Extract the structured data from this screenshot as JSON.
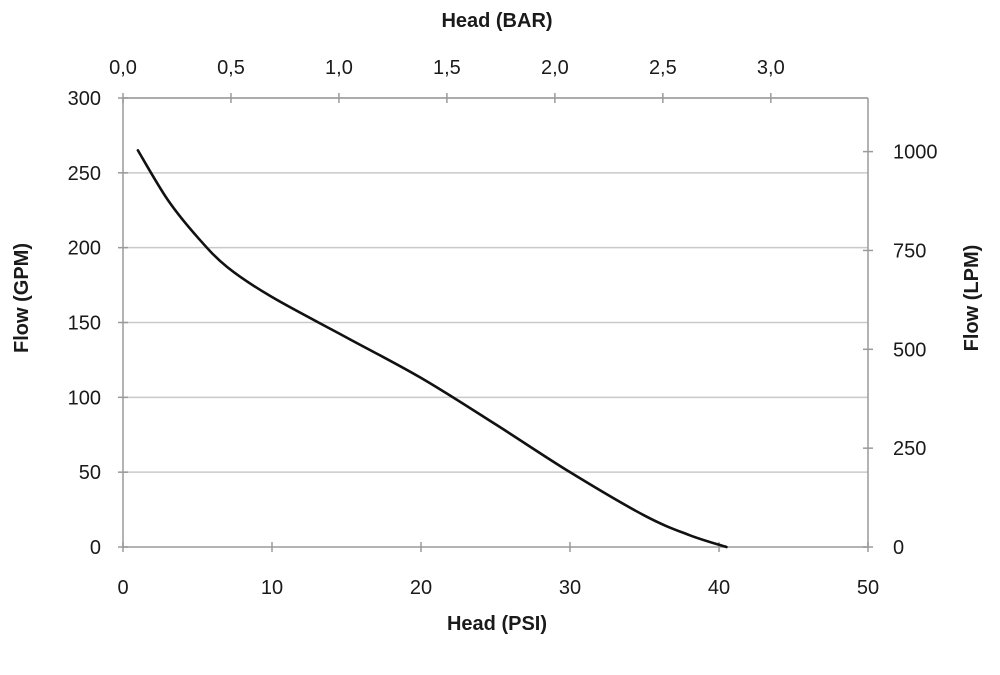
{
  "chart_data": {
    "type": "line",
    "xlabel": "Head (PSI)",
    "x2label": "Head (BAR)",
    "ylabel": "Flow (GPM)",
    "y2label": "Flow (LPM)",
    "xlim": [
      0,
      50
    ],
    "ylim": [
      0,
      300
    ],
    "x2lim": [
      0,
      3.45
    ],
    "y2lim": [
      0,
      1135.6
    ],
    "x_ticks": [
      "0",
      "10",
      "20",
      "30",
      "40",
      "50"
    ],
    "x_tick_values": [
      0,
      10,
      20,
      30,
      40,
      50
    ],
    "x2_ticks": [
      "0,0",
      "0,5",
      "1,0",
      "1,5",
      "2,0",
      "2,5",
      "3,0"
    ],
    "x2_tick_values": [
      0,
      0.5,
      1.0,
      1.5,
      2.0,
      2.5,
      3.0
    ],
    "y_ticks": [
      "0",
      "50",
      "100",
      "150",
      "200",
      "250",
      "300"
    ],
    "y_tick_values": [
      0,
      50,
      100,
      150,
      200,
      250,
      300
    ],
    "y2_ticks": [
      "0",
      "250",
      "500",
      "750",
      "1000"
    ],
    "y2_tick_values": [
      0,
      250,
      500,
      750,
      1000
    ],
    "grid": "horizontal",
    "line_color": "#111111",
    "series": [
      {
        "x": [
          1,
          3,
          5,
          7,
          10,
          15,
          20,
          25,
          30,
          35,
          38,
          40.5
        ],
        "values": [
          265,
          232,
          207,
          187,
          167,
          140,
          113,
          82,
          50,
          21,
          8,
          0
        ]
      }
    ]
  }
}
